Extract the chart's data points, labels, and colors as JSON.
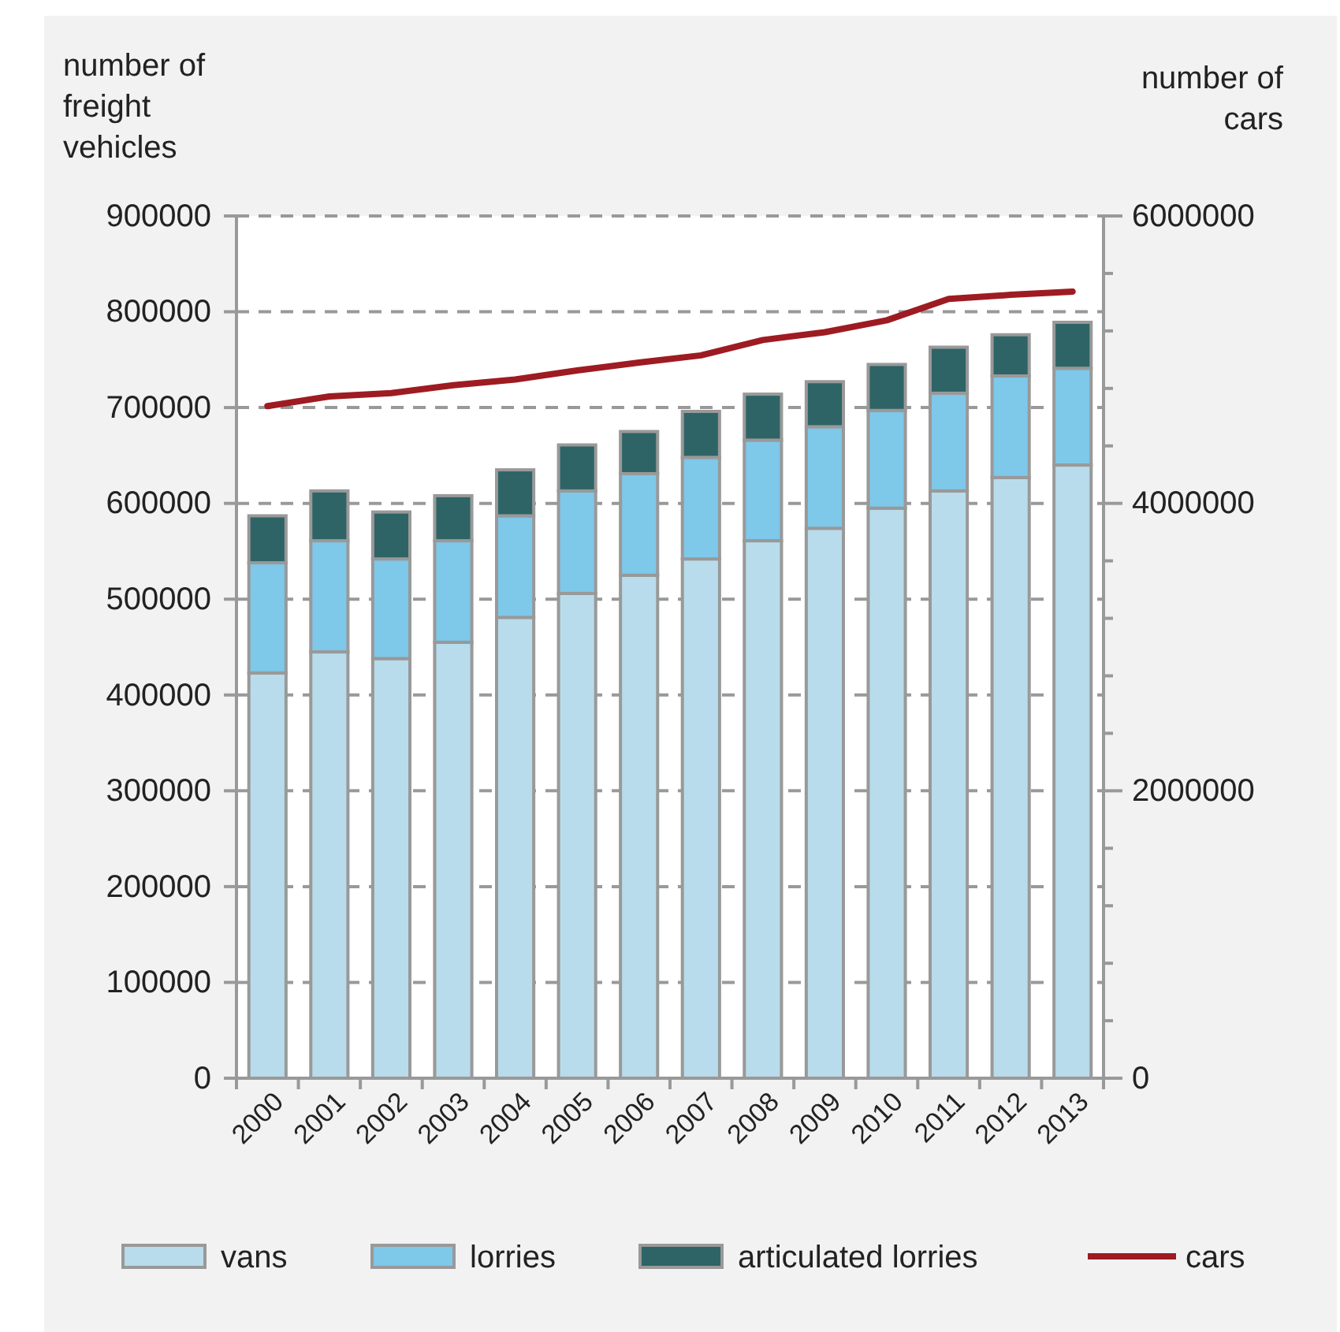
{
  "chart_data": {
    "type": "bar",
    "stacked": true,
    "categories": [
      "2000",
      "2001",
      "2002",
      "2003",
      "2004",
      "2005",
      "2006",
      "2007",
      "2008",
      "2009",
      "2010",
      "2011",
      "2012",
      "2013"
    ],
    "series": [
      {
        "name": "vans",
        "color": "#b8dceb",
        "values": [
          423000,
          445000,
          438000,
          455000,
          481000,
          506000,
          525000,
          542000,
          561000,
          574000,
          595000,
          613000,
          627000,
          640000
        ]
      },
      {
        "name": "lorries",
        "color": "#7ec8ea",
        "values": [
          115000,
          116000,
          104000,
          106000,
          106000,
          107000,
          106000,
          106000,
          105000,
          106000,
          102000,
          102000,
          106000,
          101000
        ]
      },
      {
        "name": "articulated lorries",
        "color": "#2e6465",
        "values": [
          49000,
          52000,
          49000,
          47000,
          48000,
          48000,
          44000,
          48000,
          48000,
          47000,
          48000,
          48000,
          43000,
          48000
        ]
      },
      {
        "name": "cars",
        "type": "line",
        "axis": "y2",
        "color": "#9e1b22",
        "values": [
          4677000,
          4744000,
          4767000,
          4822000,
          4862000,
          4925000,
          4980000,
          5030000,
          5137000,
          5191000,
          5274000,
          5423000,
          5451000,
          5474000
        ]
      }
    ],
    "ylabel": "number of freight vehicles",
    "y2label": "number of cars",
    "ylim": [
      0,
      900000
    ],
    "yticks": [
      0,
      100000,
      200000,
      300000,
      400000,
      500000,
      600000,
      700000,
      800000,
      900000
    ],
    "y2lim": [
      0,
      6000000
    ],
    "y2ticks": [
      0,
      {
        "value": 400000,
        "label": null
      },
      {
        "value": 800000,
        "label": null
      },
      {
        "value": 1200000,
        "label": null
      },
      {
        "value": 1600000,
        "label": null
      },
      2000000,
      {
        "value": 2400000,
        "label": null
      },
      {
        "value": 2800000,
        "label": null
      },
      {
        "value": 3200000,
        "label": null
      },
      {
        "value": 3600000,
        "label": null
      },
      4000000,
      {
        "value": 4400000,
        "label": null
      },
      {
        "value": 4800000,
        "label": null
      },
      {
        "value": 5200000,
        "label": null
      },
      {
        "value": 5600000,
        "label": null
      },
      6000000
    ],
    "grid": "y",
    "legend": "bottom",
    "line_style": "solid",
    "marker": "none"
  }
}
